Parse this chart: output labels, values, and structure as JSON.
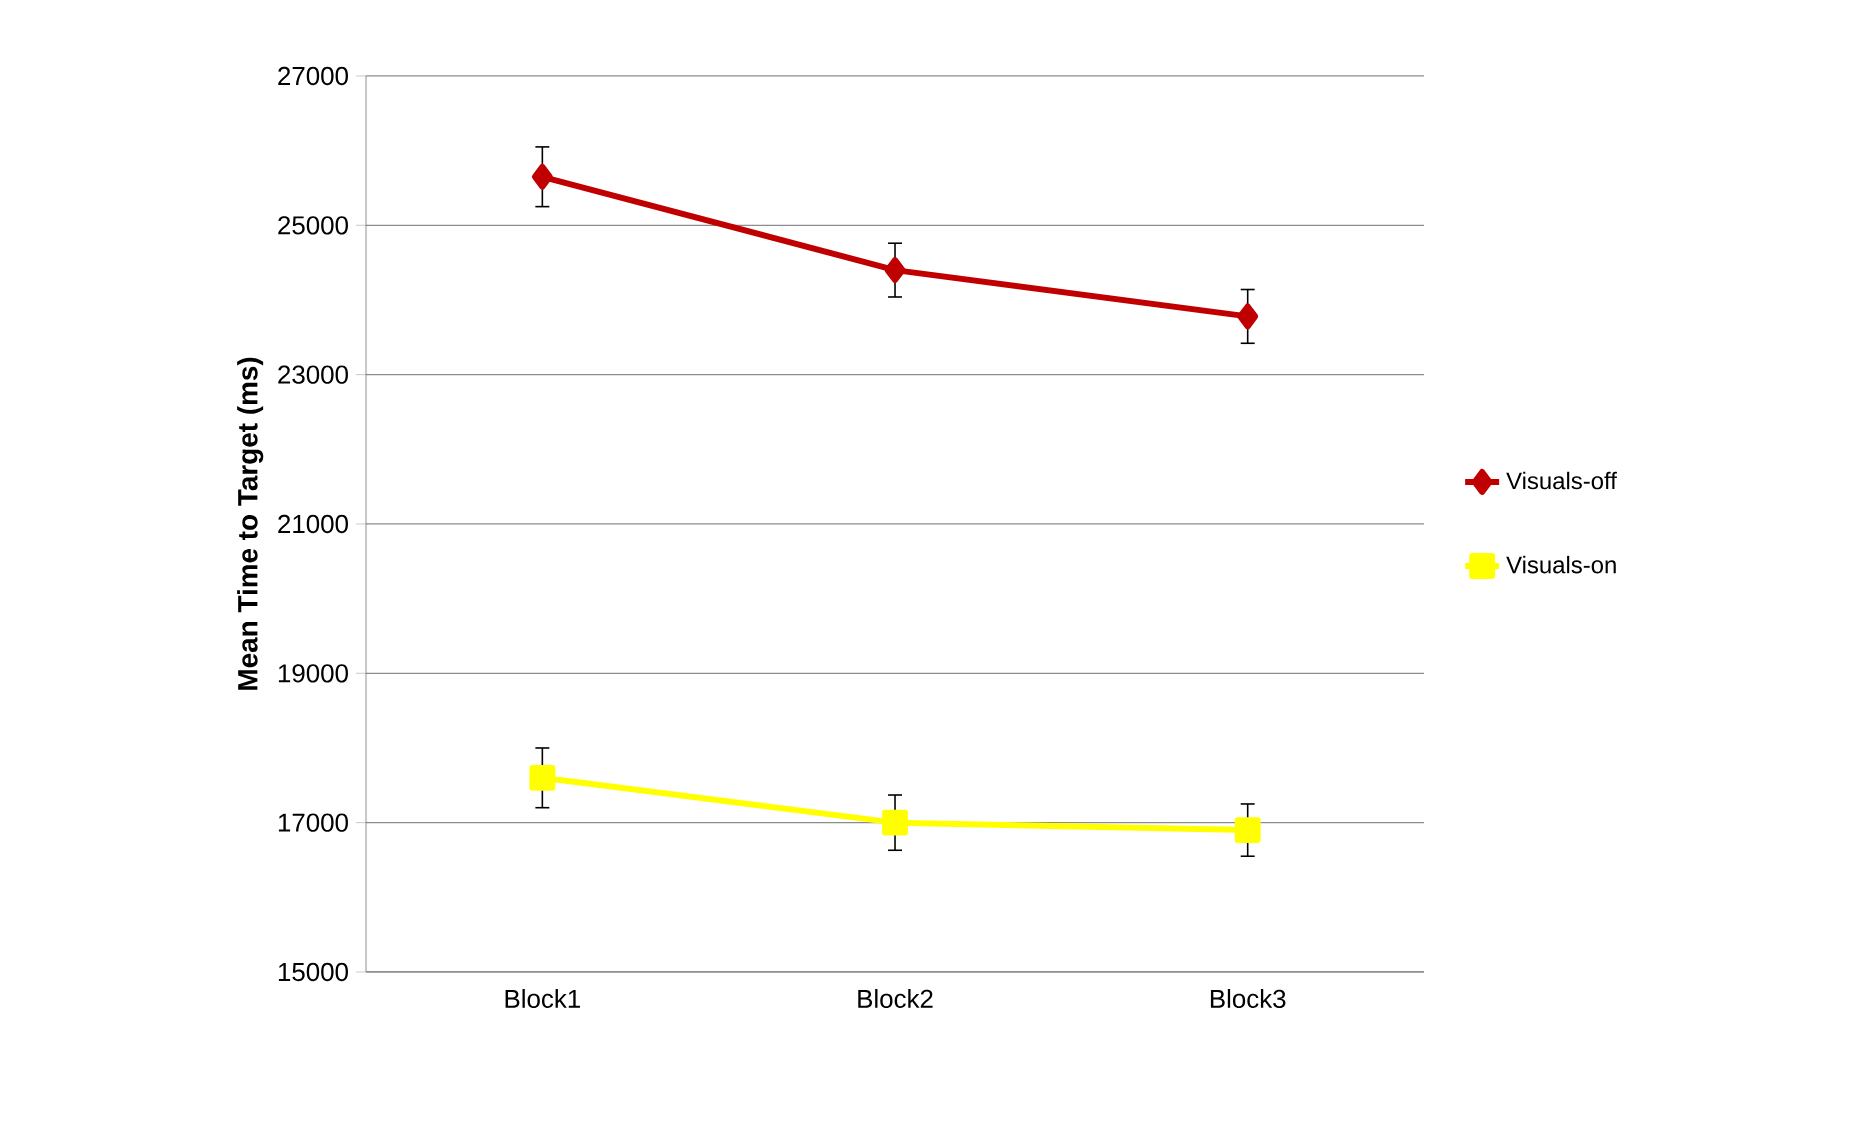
{
  "chart_data": {
    "type": "line",
    "ylabel": "Mean Time to Target (ms)",
    "categories": [
      "Block1",
      "Block2",
      "Block3"
    ],
    "series": [
      {
        "name": "Visuals-off",
        "color": "#c00000",
        "marker": "diamond",
        "values": [
          25650,
          24400,
          23780
        ],
        "errors": [
          400,
          360,
          360
        ]
      },
      {
        "name": "Visuals-on",
        "color": "#ffff00",
        "marker": "square",
        "values": [
          17600,
          17000,
          16900
        ],
        "errors": [
          400,
          370,
          350
        ]
      }
    ],
    "ylim": [
      15000,
      27000
    ],
    "yticks": [
      15000,
      17000,
      19000,
      21000,
      23000,
      25000,
      27000
    ],
    "grid": "y",
    "legend": "right"
  }
}
